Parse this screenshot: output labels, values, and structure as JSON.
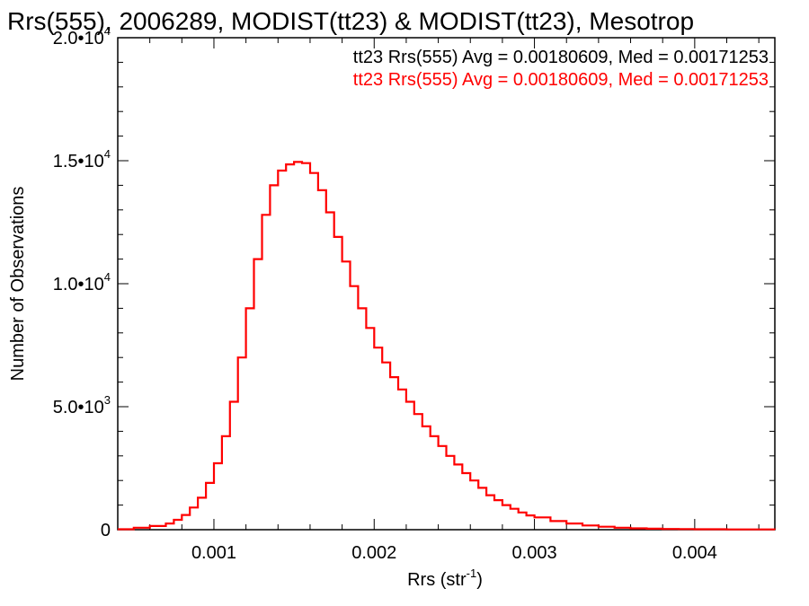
{
  "chart_data": {
    "type": "line",
    "title": "Rrs(555), 2006289, MODIST(tt23) & MODIST(tt23), Mesotrop",
    "xlabel": "Rrs (str",
    "xlabel_sup": "-1",
    "xlabel_suffix": ")",
    "ylabel": "Number of Observations",
    "xlim": [
      0.0004,
      0.0045
    ],
    "ylim": [
      0,
      20000
    ],
    "x_ticks": [
      {
        "value": 0.001,
        "label": "0.001"
      },
      {
        "value": 0.002,
        "label": "0.002"
      },
      {
        "value": 0.003,
        "label": "0.003"
      },
      {
        "value": 0.004,
        "label": "0.004"
      }
    ],
    "y_ticks": [
      {
        "value": 0,
        "mant": "0",
        "exp": ""
      },
      {
        "value": 5000,
        "mant": "5.0•10",
        "exp": "3"
      },
      {
        "value": 10000,
        "mant": "1.0•10",
        "exp": "4"
      },
      {
        "value": 15000,
        "mant": "1.5•10",
        "exp": "4"
      },
      {
        "value": 20000,
        "mant": "2.0•10",
        "exp": "4"
      }
    ],
    "annotations": [
      {
        "text": "tt23 Rrs(555) Avg = 0.00180609, Med = 0.00171253",
        "color": "#000000"
      },
      {
        "text": "tt23 Rrs(555) Avg = 0.00180609, Med = 0.00171253",
        "color": "#ff0000"
      }
    ],
    "series": [
      {
        "color": "#ff0000",
        "style": "step",
        "x": [
          0.0004,
          0.0005,
          0.0006,
          0.0007,
          0.00075,
          0.0008,
          0.00085,
          0.0009,
          0.00095,
          0.001,
          0.00105,
          0.0011,
          0.00115,
          0.0012,
          0.00125,
          0.0013,
          0.00135,
          0.0014,
          0.00145,
          0.0015,
          0.00155,
          0.0016,
          0.00165,
          0.0017,
          0.00175,
          0.0018,
          0.00185,
          0.0019,
          0.00195,
          0.002,
          0.00205,
          0.0021,
          0.00215,
          0.0022,
          0.00225,
          0.0023,
          0.00235,
          0.0024,
          0.00245,
          0.0025,
          0.00255,
          0.0026,
          0.00265,
          0.0027,
          0.00275,
          0.0028,
          0.00285,
          0.0029,
          0.00295,
          0.003,
          0.0031,
          0.0032,
          0.0033,
          0.0034,
          0.0035,
          0.0036,
          0.0037,
          0.0038,
          0.0039,
          0.004,
          0.0042,
          0.0045
        ],
        "y": [
          20,
          80,
          150,
          250,
          400,
          600,
          900,
          1300,
          1900,
          2700,
          3800,
          5200,
          7000,
          9000,
          11000,
          12800,
          14000,
          14600,
          14850,
          14950,
          14900,
          14500,
          13800,
          12900,
          11900,
          10900,
          9900,
          9000,
          8200,
          7400,
          6800,
          6200,
          5700,
          5200,
          4700,
          4200,
          3800,
          3400,
          3000,
          2650,
          2300,
          2000,
          1700,
          1400,
          1200,
          1000,
          850,
          700,
          580,
          500,
          350,
          250,
          170,
          120,
          80,
          55,
          40,
          30,
          25,
          20,
          10,
          5
        ]
      }
    ]
  }
}
